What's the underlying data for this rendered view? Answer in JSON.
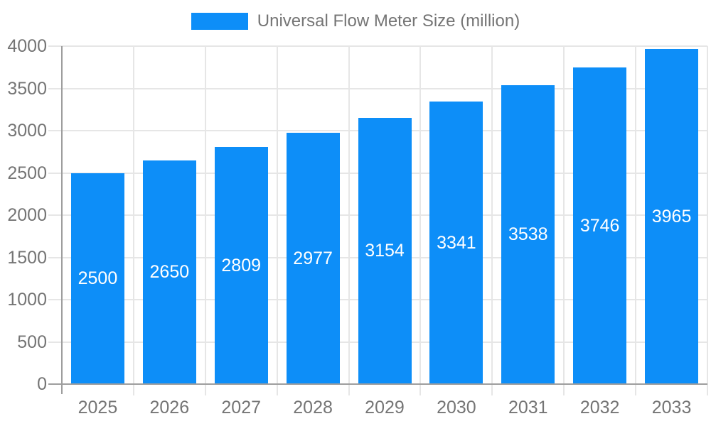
{
  "legend": {
    "label": "Universal Flow Meter Size (million)"
  },
  "chart_data": {
    "type": "bar",
    "title": "Universal Flow Meter Size (million)",
    "categories": [
      "2025",
      "2026",
      "2027",
      "2028",
      "2029",
      "2030",
      "2031",
      "2032",
      "2033"
    ],
    "series": [
      {
        "name": "Universal Flow Meter Size (million)",
        "values": [
          2500,
          2650,
          2809,
          2977,
          3154,
          3341,
          3538,
          3746,
          3965
        ]
      }
    ],
    "values": [
      2500,
      2650,
      2809,
      2977,
      3154,
      3341,
      3538,
      3746,
      3965
    ],
    "value_labels": [
      "2500",
      "2650",
      "2809",
      "2977",
      "3154",
      "3341",
      "3538",
      "3746",
      "3965"
    ],
    "xlabel": "",
    "ylabel": "",
    "ylim": [
      0,
      4000
    ],
    "yticks": [
      0,
      500,
      1000,
      1500,
      2000,
      2500,
      3000,
      3500,
      4000
    ],
    "grid": true,
    "legend_position": "top",
    "colors": {
      "bar": "#0d8ef8",
      "value_label": "#ffffff",
      "axis_text": "#757575",
      "grid_line": "#e6e6e6",
      "axis_line": "#9e9e9e",
      "background": "#ffffff"
    }
  }
}
